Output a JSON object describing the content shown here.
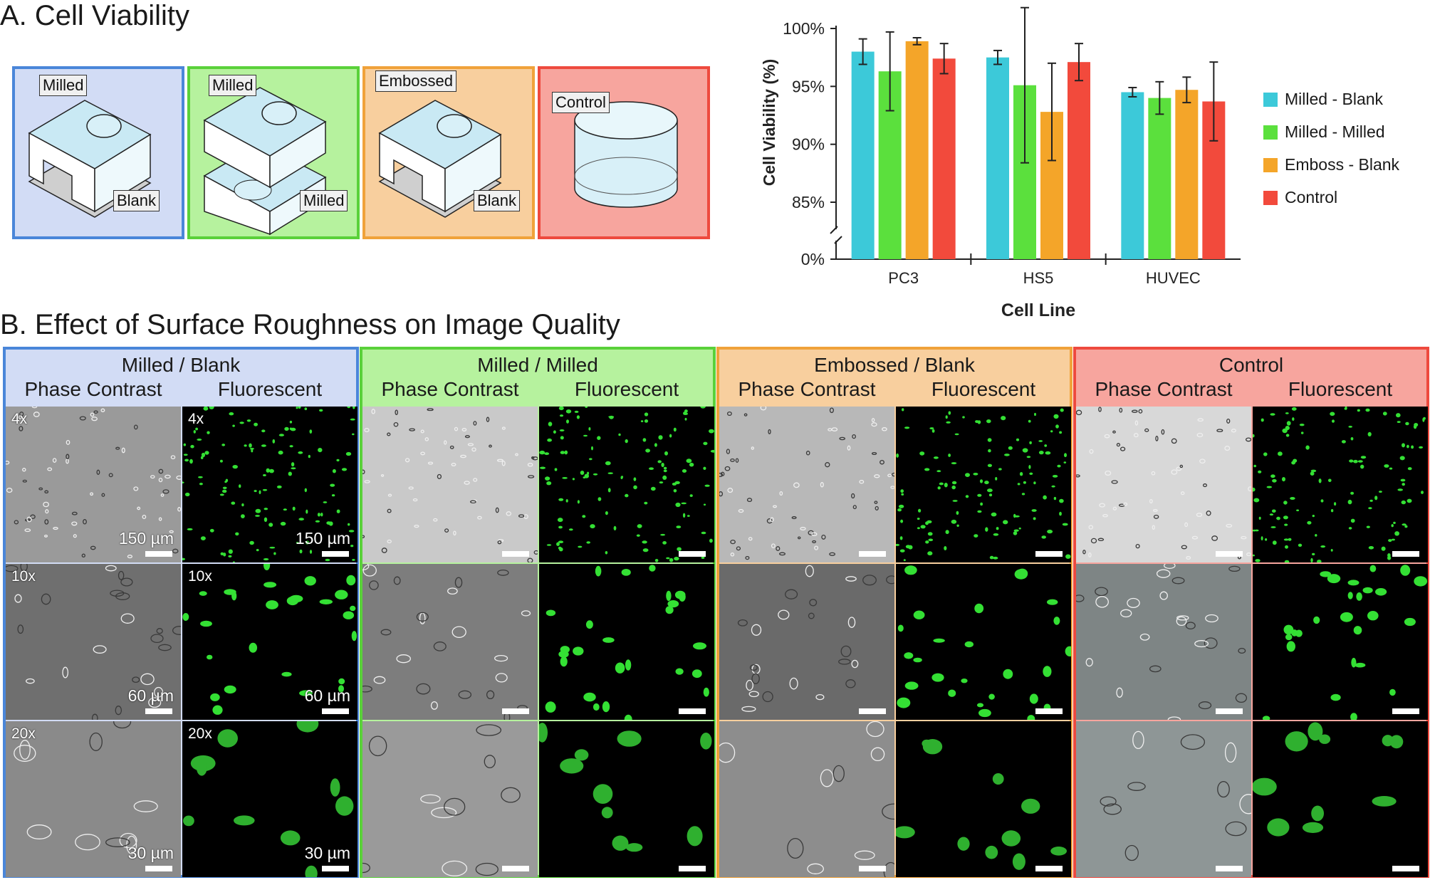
{
  "part_a": {
    "title": "A. Cell Viability"
  },
  "part_b": {
    "title": "B. Effect of Surface Roughness on Image Quality"
  },
  "schematics": [
    {
      "labels": [
        "Milled",
        "Blank"
      ],
      "border": "#4a86d9",
      "bg": "#d2dcf5"
    },
    {
      "labels": [
        "Milled",
        "Milled"
      ],
      "border": "#5ad13a",
      "bg": "#b6f29e"
    },
    {
      "labels": [
        "Embossed",
        "Blank"
      ],
      "border": "#f0a23a",
      "bg": "#f8cf9e"
    },
    {
      "labels": [
        "Control"
      ],
      "border": "#ee4a3e",
      "bg": "#f7a59e"
    }
  ],
  "chart_data": {
    "type": "bar",
    "xlabel": "Cell Line",
    "ylabel": "Cell Viability (%)",
    "categories": [
      "PC3",
      "HS5",
      "HUVEC"
    ],
    "yticks": [
      "0%",
      "85%",
      "90%",
      "95%",
      "100%"
    ],
    "y_axis_break": [
      0,
      85
    ],
    "ylim": [
      85,
      100
    ],
    "grid": false,
    "legend_position": "right",
    "series": [
      {
        "name": "Milled - Blank",
        "color": "#3cc9d9",
        "values": [
          98.0,
          97.5,
          94.5
        ],
        "errors": [
          1.1,
          0.6,
          0.4
        ]
      },
      {
        "name": "Milled - Milled",
        "color": "#5be03d",
        "values": [
          96.3,
          95.1,
          94.0
        ],
        "errors": [
          3.4,
          6.7,
          1.4
        ]
      },
      {
        "name": "Emboss - Blank",
        "color": "#f4a529",
        "values": [
          98.9,
          92.8,
          94.7
        ],
        "errors": [
          0.3,
          4.2,
          1.1
        ]
      },
      {
        "name": "Control",
        "color": "#f24a3c",
        "values": [
          97.4,
          97.1,
          93.7
        ],
        "errors": [
          1.3,
          1.6,
          3.4
        ]
      }
    ]
  },
  "micro_panels": [
    {
      "title": "Milled / Blank",
      "border": "#4a86d9",
      "bg": "#d2dcf5",
      "phase": "Phase Contrast",
      "fluor": "Fluorescent",
      "mags": [
        "4x",
        "10x",
        "20x"
      ],
      "scales": [
        "150 µm",
        "60 µm",
        "30 µm"
      ]
    },
    {
      "title": "Milled / Milled",
      "border": "#5ad13a",
      "bg": "#b6f29e",
      "phase": "Phase Contrast",
      "fluor": "Fluorescent"
    },
    {
      "title": "Embossed / Blank",
      "border": "#f0a23a",
      "bg": "#f8cf9e",
      "phase": "Phase Contrast",
      "fluor": "Fluorescent"
    },
    {
      "title": "Control",
      "border": "#ee4a3e",
      "bg": "#f7a59e",
      "phase": "Phase Contrast",
      "fluor": "Fluorescent"
    }
  ]
}
